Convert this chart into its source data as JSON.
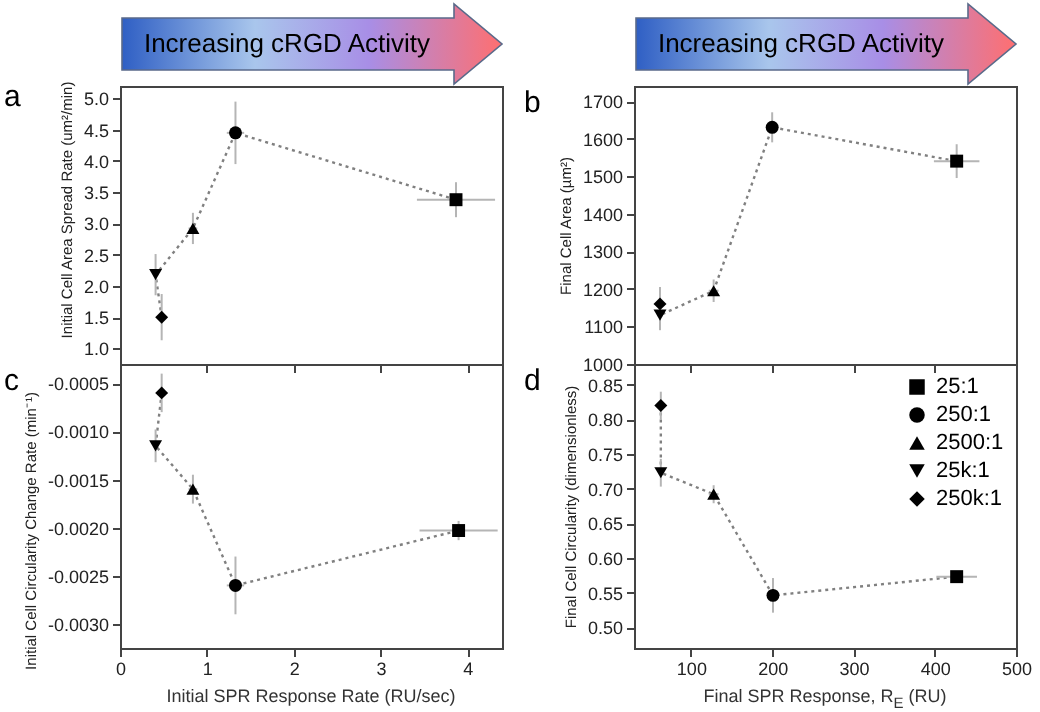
{
  "chart_data": [
    {
      "type": "scatter",
      "title": "a",
      "ylabel": "Initial Cell Area Spread Rate (um²/min)",
      "annotations": [
        "Increasing cRGD Activity"
      ],
      "xlim": [
        0,
        4.4
      ],
      "xticks": [
        0,
        1,
        2,
        3,
        4
      ],
      "ylim": [
        0.75,
        5.2
      ],
      "yticks": [
        {
          "value": 1,
          "label": "1.0"
        },
        {
          "value": 1.5,
          "label": "1.5"
        },
        {
          "value": 2,
          "label": "2.0"
        },
        {
          "value": 2.5,
          "label": "2.5"
        },
        {
          "value": 3,
          "label": "3.0"
        },
        {
          "value": 3.5,
          "label": "3.5"
        },
        {
          "value": 4,
          "label": "4.0"
        },
        {
          "value": 4.5,
          "label": "4.5"
        },
        {
          "value": 5,
          "label": "5.0"
        }
      ],
      "tick_labels": "y",
      "legend": false,
      "series": [
        {
          "color": "#000000",
          "marker": "square",
          "x": [
            3.87
          ],
          "values": [
            3.38
          ],
          "errors": [
            0.28
          ],
          "xerrors": [
            0.45
          ]
        },
        {
          "color": "#000000",
          "marker": "circle",
          "x": [
            1.33
          ],
          "values": [
            4.45
          ],
          "errors": [
            0.5
          ],
          "xerrors": [
            0.1
          ]
        },
        {
          "color": "#000000",
          "marker": "triangle",
          "x": [
            0.84
          ],
          "values": [
            2.92
          ],
          "errors": [
            0.25
          ],
          "xerrors": [
            0.05
          ]
        },
        {
          "color": "#000000",
          "marker": "triangle-down",
          "x": [
            0.41
          ],
          "values": [
            2.18
          ],
          "errors": [
            0.33
          ]
        },
        {
          "color": "#000000",
          "marker": "diamond",
          "x": [
            0.48
          ],
          "values": [
            1.5
          ],
          "errors": [
            0.37
          ]
        },
        {
          "type": "line",
          "color": "#808080",
          "line_style": "dotted",
          "marker": "none",
          "x": [
            0.48,
            0.41,
            0.84,
            1.33,
            3.87
          ],
          "values": [
            1.5,
            2.18,
            2.92,
            4.45,
            3.38
          ]
        }
      ]
    },
    {
      "type": "scatter",
      "title": "b",
      "ylabel": "Final Cell Area (µm²)",
      "annotations": [
        "Increasing cRGD Activity"
      ],
      "xlim": [
        30,
        500
      ],
      "xticks": [
        100,
        200,
        300,
        400,
        500
      ],
      "ylim": [
        1000,
        1740
      ],
      "yticks": [
        1000,
        1100,
        1200,
        1300,
        1400,
        1500,
        1600,
        1700
      ],
      "tick_labels": "y",
      "legend": false,
      "series": [
        {
          "color": "#000000",
          "marker": "square",
          "x": [
            427
          ],
          "values": [
            1540
          ],
          "errors": [
            45
          ],
          "xerrors": [
            28
          ]
        },
        {
          "color": "#000000",
          "marker": "circle",
          "x": [
            200
          ],
          "values": [
            1630
          ],
          "errors": [
            40
          ],
          "xerrors": [
            6
          ]
        },
        {
          "color": "#000000",
          "marker": "triangle",
          "x": [
            128
          ],
          "values": [
            1195
          ],
          "errors": [
            30
          ],
          "xerrors": [
            6
          ]
        },
        {
          "color": "#000000",
          "marker": "triangle-down",
          "x": [
            62
          ],
          "values": [
            1130
          ],
          "errors": [
            40
          ]
        },
        {
          "color": "#000000",
          "marker": "diamond",
          "x": [
            62
          ],
          "values": [
            1160
          ],
          "errors": [
            45
          ]
        },
        {
          "type": "line",
          "color": "#808080",
          "line_style": "dotted",
          "marker": "none",
          "x": [
            62,
            62,
            128,
            200,
            427
          ],
          "values": [
            1160,
            1130,
            1195,
            1630,
            1540
          ]
        }
      ]
    },
    {
      "type": "scatter",
      "title": "c",
      "xlabel": "Initial SPR Response Rate (RU/sec)",
      "ylabel": "Initial Cell Circularity Change Rate (min⁻¹)",
      "xlim": [
        0,
        4.4
      ],
      "xticks": [
        0,
        1,
        2,
        3,
        4
      ],
      "ylim": [
        -0.00325,
        -0.0003
      ],
      "yticks": [
        {
          "value": -0.0005,
          "label": "-0.0005"
        },
        {
          "value": -0.001,
          "label": "-0.0010"
        },
        {
          "value": -0.0015,
          "label": "-0.0015"
        },
        {
          "value": -0.002,
          "label": "-0.0020"
        },
        {
          "value": -0.0025,
          "label": "-0.0025"
        },
        {
          "value": -0.003,
          "label": "-0.0030"
        }
      ],
      "legend": false,
      "series": [
        {
          "color": "#000000",
          "marker": "square",
          "x": [
            3.9
          ],
          "values": [
            -0.00203
          ],
          "errors": [
            0.0001
          ],
          "xerrors": [
            0.45
          ]
        },
        {
          "color": "#000000",
          "marker": "circle",
          "x": [
            1.33
          ],
          "values": [
            -0.0026
          ],
          "errors": [
            0.0003
          ],
          "xerrors": [
            0.1
          ]
        },
        {
          "color": "#000000",
          "marker": "triangle",
          "x": [
            0.84
          ],
          "values": [
            -0.0016
          ],
          "errors": [
            0.00015
          ],
          "xerrors": [
            0.05
          ]
        },
        {
          "color": "#000000",
          "marker": "triangle-down",
          "x": [
            0.41
          ],
          "values": [
            -0.00115
          ],
          "errors": [
            0.00017
          ]
        },
        {
          "color": "#000000",
          "marker": "diamond",
          "x": [
            0.48
          ],
          "values": [
            -0.0006
          ],
          "errors": [
            0.0002
          ]
        },
        {
          "type": "line",
          "color": "#808080",
          "line_style": "dotted",
          "marker": "none",
          "x": [
            0.48,
            0.41,
            0.84,
            1.33,
            3.9
          ],
          "values": [
            -0.0006,
            -0.00115,
            -0.0016,
            -0.0026,
            -0.00203
          ]
        }
      ]
    },
    {
      "type": "scatter",
      "title": "d",
      "xlabel": "Final SPR Response, R$_{E}$ (RU)",
      "ylabel": "Final Cell Circularity (dimensionless)",
      "xlim": [
        30,
        500
      ],
      "xticks": [
        100,
        200,
        300,
        400,
        500
      ],
      "ylim": [
        0.47,
        0.88
      ],
      "yticks": [
        {
          "value": 0.5,
          "label": "0.50"
        },
        {
          "value": 0.55,
          "label": "0.55"
        },
        {
          "value": 0.6,
          "label": "0.60"
        },
        {
          "value": 0.65,
          "label": "0.65"
        },
        {
          "value": 0.7,
          "label": "0.70"
        },
        {
          "value": 0.75,
          "label": "0.75"
        },
        {
          "value": 0.8,
          "label": "0.80"
        },
        {
          "value": 0.85,
          "label": "0.85"
        }
      ],
      "legend": "top right",
      "series": [
        {
          "name": "25:1",
          "color": "#000000",
          "marker": "square",
          "x": [
            427
          ],
          "values": [
            0.573
          ],
          "errors": [
            0.008
          ],
          "xerrors": [
            25
          ]
        },
        {
          "name": "250:1",
          "color": "#000000",
          "marker": "circle",
          "x": [
            201
          ],
          "values": [
            0.546
          ],
          "errors": [
            0.025
          ],
          "xerrors": [
            6
          ]
        },
        {
          "name": "2500:1",
          "color": "#000000",
          "marker": "triangle",
          "x": [
            128
          ],
          "values": [
            0.692
          ],
          "errors": [
            0.013
          ],
          "xerrors": [
            6
          ]
        },
        {
          "name": "25k:1",
          "color": "#000000",
          "marker": "triangle-down",
          "x": [
            63
          ],
          "values": [
            0.723
          ],
          "errors": [
            0.02
          ]
        },
        {
          "name": "250k:1",
          "color": "#000000",
          "marker": "diamond",
          "x": [
            63
          ],
          "values": [
            0.82
          ],
          "errors": [
            0.02
          ]
        },
        {
          "type": "line",
          "color": "#808080",
          "line_style": "dotted",
          "marker": "none",
          "x": [
            63,
            63,
            128,
            201,
            427
          ],
          "values": [
            0.82,
            0.723,
            0.692,
            0.546,
            0.573
          ]
        }
      ]
    }
  ]
}
